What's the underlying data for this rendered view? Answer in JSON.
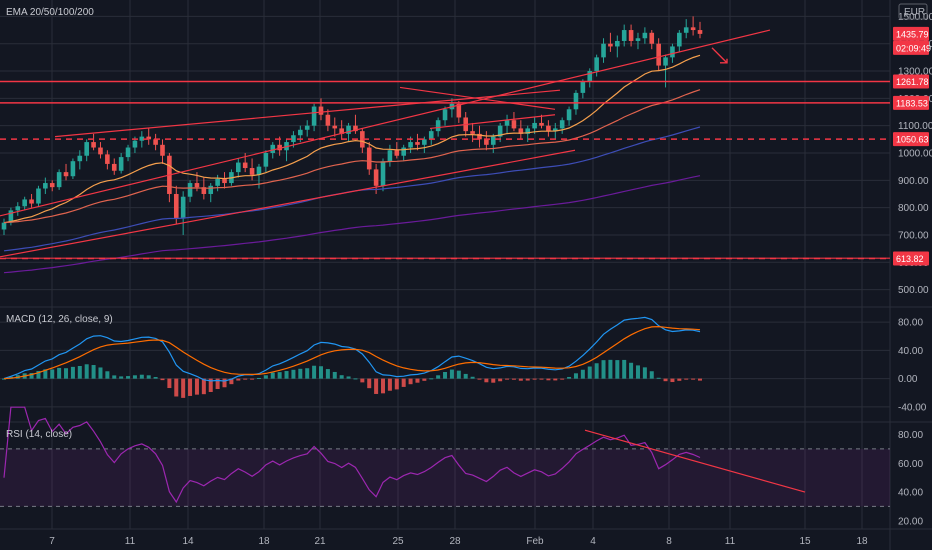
{
  "chart_data": [
    {
      "type": "candlestick",
      "title": "EMA 20/50/100/200",
      "currency": "EUR",
      "x_ticks": [
        "7",
        "11",
        "14",
        "18",
        "21",
        "25",
        "28",
        "Feb",
        "4",
        "8",
        "11",
        "15",
        "18"
      ],
      "y_ticks": [
        500,
        600,
        700,
        800,
        900,
        1000,
        1100,
        1200,
        1300,
        1400,
        1500
      ],
      "ylim": [
        440,
        1560
      ],
      "price_labels": {
        "current": {
          "value": "1435.79",
          "countdown": "02:09:49"
        },
        "levels": [
          "1261.78",
          "1183.53",
          "1050.63",
          "613.82"
        ]
      },
      "candles": [
        [
          720,
          760,
          700,
          745
        ],
        [
          745,
          800,
          735,
          790
        ],
        [
          790,
          820,
          770,
          805
        ],
        [
          805,
          840,
          790,
          830
        ],
        [
          830,
          850,
          800,
          815
        ],
        [
          815,
          880,
          805,
          870
        ],
        [
          870,
          910,
          850,
          890
        ],
        [
          890,
          900,
          860,
          875
        ],
        [
          875,
          940,
          865,
          930
        ],
        [
          930,
          960,
          900,
          915
        ],
        [
          915,
          980,
          905,
          970
        ],
        [
          970,
          1010,
          940,
          990
        ],
        [
          990,
          1050,
          970,
          1040
        ],
        [
          1040,
          1070,
          1010,
          1020
        ],
        [
          1020,
          1040,
          980,
          995
        ],
        [
          995,
          1010,
          940,
          960
        ],
        [
          960,
          980,
          920,
          935
        ],
        [
          935,
          1000,
          925,
          985
        ],
        [
          985,
          1030,
          970,
          1020
        ],
        [
          1020,
          1060,
          1000,
          1045
        ],
        [
          1045,
          1080,
          1020,
          1060
        ],
        [
          1060,
          1090,
          1030,
          1050
        ],
        [
          1050,
          1070,
          1010,
          1030
        ],
        [
          1030,
          1050,
          960,
          990
        ],
        [
          990,
          1000,
          820,
          850
        ],
        [
          850,
          880,
          740,
          760
        ],
        [
          760,
          860,
          700,
          840
        ],
        [
          840,
          900,
          820,
          890
        ],
        [
          890,
          930,
          860,
          875
        ],
        [
          875,
          910,
          830,
          850
        ],
        [
          850,
          890,
          820,
          880
        ],
        [
          880,
          920,
          860,
          905
        ],
        [
          905,
          930,
          870,
          890
        ],
        [
          890,
          940,
          880,
          930
        ],
        [
          930,
          980,
          910,
          965
        ],
        [
          965,
          1000,
          930,
          945
        ],
        [
          945,
          980,
          900,
          920
        ],
        [
          920,
          960,
          870,
          950
        ],
        [
          950,
          1010,
          930,
          1000
        ],
        [
          1000,
          1040,
          980,
          1030
        ],
        [
          1030,
          1060,
          990,
          1010
        ],
        [
          1010,
          1050,
          970,
          1040
        ],
        [
          1040,
          1080,
          1020,
          1065
        ],
        [
          1065,
          1100,
          1040,
          1085
        ],
        [
          1085,
          1120,
          1060,
          1100
        ],
        [
          1100,
          1180,
          1080,
          1170
        ],
        [
          1170,
          1200,
          1120,
          1140
        ],
        [
          1140,
          1160,
          1080,
          1100
        ],
        [
          1100,
          1130,
          1060,
          1090
        ],
        [
          1090,
          1120,
          1050,
          1070
        ],
        [
          1070,
          1110,
          1040,
          1100
        ],
        [
          1100,
          1140,
          1070,
          1080
        ],
        [
          1080,
          1090,
          1000,
          1020
        ],
        [
          1020,
          1040,
          920,
          940
        ],
        [
          940,
          960,
          850,
          880
        ],
        [
          880,
          980,
          860,
          970
        ],
        [
          970,
          1030,
          950,
          1010
        ],
        [
          1010,
          1040,
          980,
          990
        ],
        [
          990,
          1030,
          970,
          1020
        ],
        [
          1020,
          1060,
          1000,
          1040
        ],
        [
          1040,
          1070,
          1010,
          1030
        ],
        [
          1030,
          1060,
          1000,
          1050
        ],
        [
          1050,
          1090,
          1030,
          1080
        ],
        [
          1080,
          1130,
          1060,
          1120
        ],
        [
          1120,
          1170,
          1100,
          1160
        ],
        [
          1160,
          1200,
          1130,
          1180
        ],
        [
          1180,
          1190,
          1110,
          1130
        ],
        [
          1130,
          1150,
          1060,
          1080
        ],
        [
          1080,
          1110,
          1040,
          1070
        ],
        [
          1070,
          1100,
          1020,
          1050
        ],
        [
          1050,
          1080,
          1010,
          1030
        ],
        [
          1030,
          1070,
          1000,
          1060
        ],
        [
          1060,
          1110,
          1040,
          1100
        ],
        [
          1100,
          1140,
          1070,
          1120
        ],
        [
          1120,
          1150,
          1080,
          1090
        ],
        [
          1090,
          1120,
          1050,
          1070
        ],
        [
          1070,
          1100,
          1040,
          1090
        ],
        [
          1090,
          1130,
          1070,
          1110
        ],
        [
          1110,
          1140,
          1090,
          1100
        ],
        [
          1100,
          1120,
          1060,
          1080
        ],
        [
          1080,
          1110,
          1050,
          1090
        ],
        [
          1090,
          1130,
          1070,
          1120
        ],
        [
          1120,
          1170,
          1100,
          1160
        ],
        [
          1160,
          1230,
          1140,
          1220
        ],
        [
          1220,
          1270,
          1200,
          1260
        ],
        [
          1260,
          1310,
          1240,
          1300
        ],
        [
          1300,
          1360,
          1280,
          1350
        ],
        [
          1350,
          1420,
          1330,
          1400
        ],
        [
          1400,
          1440,
          1370,
          1390
        ],
        [
          1390,
          1430,
          1350,
          1410
        ],
        [
          1410,
          1470,
          1390,
          1450
        ],
        [
          1450,
          1470,
          1390,
          1410
        ],
        [
          1410,
          1440,
          1380,
          1420
        ],
        [
          1420,
          1460,
          1400,
          1440
        ],
        [
          1440,
          1450,
          1380,
          1400
        ],
        [
          1400,
          1420,
          1300,
          1320
        ],
        [
          1320,
          1360,
          1240,
          1350
        ],
        [
          1350,
          1400,
          1330,
          1390
        ],
        [
          1390,
          1450,
          1370,
          1440
        ],
        [
          1440,
          1490,
          1420,
          1460
        ],
        [
          1460,
          1500,
          1430,
          1450
        ],
        [
          1450,
          1480,
          1420,
          1436
        ]
      ],
      "ema": [
        {
          "name": "EMA 20",
          "color": "#f6a04d"
        },
        {
          "name": "EMA 50",
          "color": "#e0634e"
        },
        {
          "name": "EMA 100",
          "color": "#3d4db7"
        },
        {
          "name": "EMA 200",
          "color": "#6a1b9a"
        }
      ]
    },
    {
      "type": "macd",
      "title": "MACD (12, 26, close, 9)",
      "y_ticks": [
        "80.00",
        "40.00",
        "0.00",
        "-40.00"
      ],
      "ylim": [
        -60,
        100
      ]
    },
    {
      "type": "rsi",
      "title": "RSI (14, close)",
      "y_ticks": [
        "80.00",
        "60.00",
        "40.00",
        "20.00"
      ],
      "ylim": [
        15,
        88
      ],
      "bands": [
        30,
        70
      ]
    }
  ],
  "colors": {
    "background": "#131722",
    "grid": "#2a2e39",
    "up": "#26a69a",
    "down": "#ef5350",
    "macd": "#2196f3",
    "signal": "#ff6d00",
    "rsi": "#9c27b0",
    "level": "#f23645",
    "text": "#b2b5be"
  }
}
